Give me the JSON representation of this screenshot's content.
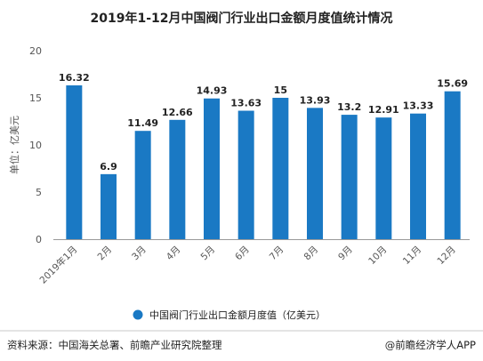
{
  "chart_data": {
    "type": "bar",
    "title": "2019年1-12月中国阀门行业出口金额月度值统计情况",
    "ylabel": "单位：亿美元",
    "ylim": [
      0,
      20
    ],
    "yticks": [
      0,
      5,
      10,
      15,
      20
    ],
    "categories": [
      "2019年1月",
      "2月",
      "3月",
      "4月",
      "5月",
      "6月",
      "7月",
      "8月",
      "9月",
      "10月",
      "11月",
      "12月"
    ],
    "series": [
      {
        "name": "中国阀门行业出口金额月度值（亿美元）",
        "color": "#1a79c4",
        "values": [
          16.32,
          6.9,
          11.49,
          12.66,
          14.93,
          13.63,
          15,
          13.93,
          13.2,
          12.91,
          13.33,
          15.69
        ],
        "labels": [
          "16.32",
          "6.9",
          "11.49",
          "12.66",
          "14.93",
          "13.63",
          "15",
          "13.93",
          "13.2",
          "12.91",
          "13.33",
          "15.69"
        ]
      }
    ],
    "grid": false,
    "legend_position": "bottom"
  },
  "footer": {
    "source": "资料来源：中国海关总署、前瞻产业研究院整理",
    "brand": "@前瞻经济学人APP"
  }
}
